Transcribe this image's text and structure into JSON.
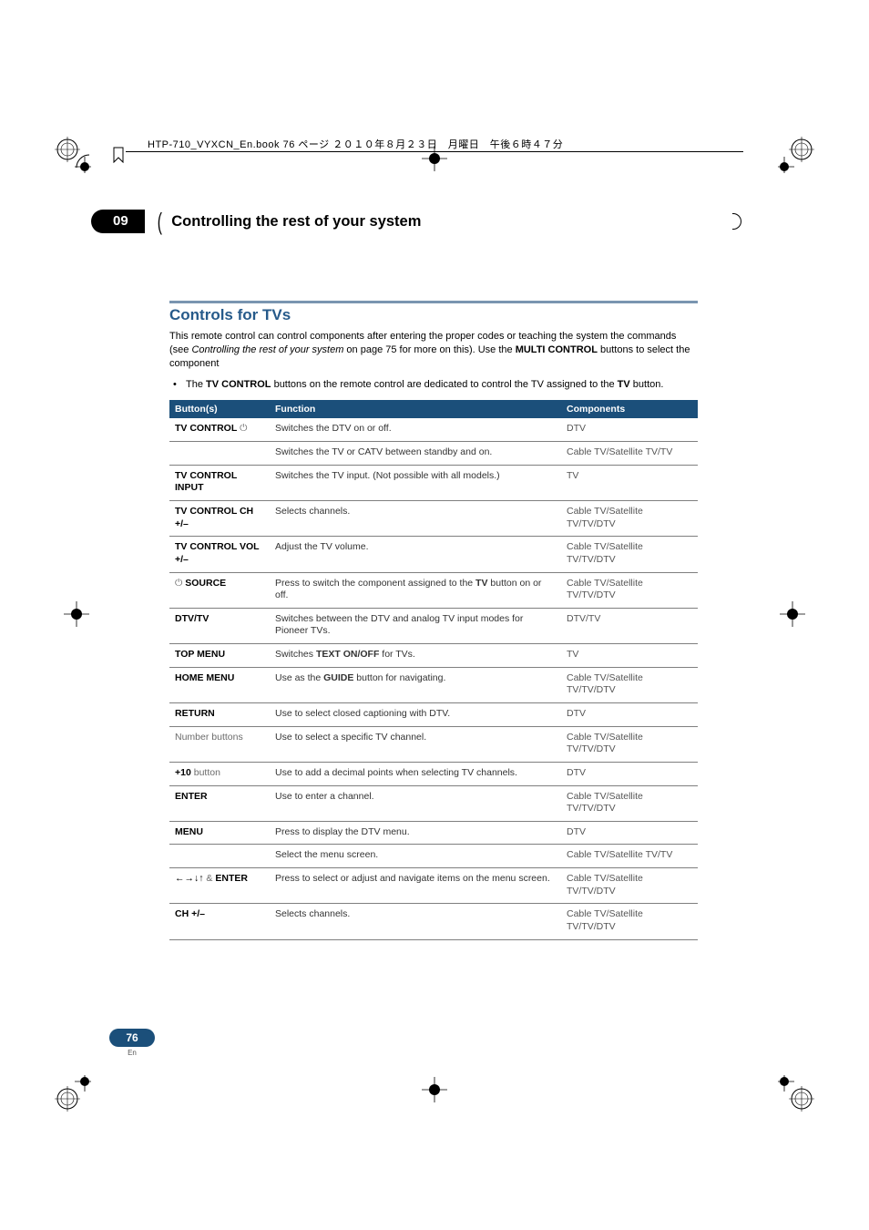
{
  "printer_header": "HTP-710_VYXCN_En.book  76 ページ  ２０１０年８月２３日　月曜日　午後６時４７分",
  "chapter": {
    "num": "09",
    "title": "Controlling the rest of your system"
  },
  "section": {
    "title": "Controls for TVs",
    "intro_a": "This remote control can control components after entering the proper codes or teaching the system the commands (see ",
    "intro_ital": "Controlling the rest of your system",
    "intro_b": " on page 75 for more on this). Use the ",
    "intro_bold": "MULTI CONTROL",
    "intro_c": " buttons to select the component",
    "bullet_a": "The ",
    "bullet_bold1": "TV CONTROL",
    "bullet_b": " buttons on the remote control are dedicated to control the TV assigned to the ",
    "bullet_bold2": "TV",
    "bullet_c": " button."
  },
  "table": {
    "head": {
      "c1": "Button(s)",
      "c2": "Function",
      "c3": "Components"
    },
    "rows": [
      {
        "btn": "TV CONTROL ⏻",
        "btn_html": "<b>TV CONTROL</b> <span class='grey'>⏻</span>",
        "fn": "Switches the DTV on or off.",
        "comp": "DTV"
      },
      {
        "btn": "",
        "fn": "Switches the TV or CATV between standby and on.",
        "comp": "Cable TV/Satellite TV/TV"
      },
      {
        "btn": "TV CONTROL INPUT",
        "fn": "Switches the TV input. (Not possible with all models.)",
        "comp": "TV"
      },
      {
        "btn": "TV CONTROL CH +/–",
        "fn": "Selects channels.",
        "comp": "Cable TV/Satellite TV/TV/DTV"
      },
      {
        "btn": "TV CONTROL VOL +/–",
        "fn": "Adjust the TV volume.",
        "comp": "Cable TV/Satellite TV/TV/DTV"
      },
      {
        "btn": "⏻ SOURCE",
        "btn_html": "<span class='grey'>⏻</span> <b>SOURCE</b>",
        "fn_html": "Press to switch the component assigned to the <b>TV</b> button on or off.",
        "comp": "Cable TV/Satellite TV/TV/DTV"
      },
      {
        "btn": "DTV/TV",
        "fn": "Switches between the DTV and analog TV input modes for Pioneer TVs.",
        "comp": "DTV/TV"
      },
      {
        "btn": "TOP MENU",
        "fn_html": "Switches <b>TEXT ON/OFF</b> for TVs.",
        "comp": "TV"
      },
      {
        "btn": "HOME MENU",
        "fn_html": "Use as the <b>GUIDE</b> button for navigating.",
        "comp": "Cable TV/Satellite TV/TV/DTV"
      },
      {
        "btn": "RETURN",
        "fn": "Use to select closed captioning with DTV.",
        "comp": "DTV"
      },
      {
        "btn_html": "<span class='grey' style='font-weight:normal'>Number buttons</span>",
        "fn": "Use to select a specific TV channel.",
        "comp": "Cable TV/Satellite TV/TV/DTV"
      },
      {
        "btn_html": "<b>+10</b> <span class='grey' style='font-weight:normal'>button</span>",
        "fn": "Use to add a decimal points when selecting TV channels.",
        "comp": "DTV"
      },
      {
        "btn": "ENTER",
        "fn": "Use to enter a channel.",
        "comp": "Cable TV/Satellite TV/TV/DTV"
      },
      {
        "btn": "MENU",
        "fn": "Press to display the DTV menu.",
        "comp": "DTV"
      },
      {
        "btn": "",
        "fn": "Select the menu screen.",
        "comp": "Cable TV/Satellite TV/TV"
      },
      {
        "btn_html": "<b>←→↓↑</b> <span class='grey' style='font-weight:normal'>&amp;</span> <b>ENTER</b>",
        "fn": "Press to select or adjust and navigate items on the menu screen.",
        "comp": "Cable TV/Satellite TV/TV/DTV"
      },
      {
        "btn": "CH +/–",
        "fn": "Selects channels.",
        "comp": "Cable TV/Satellite TV/TV/DTV"
      }
    ]
  },
  "footer": {
    "pagenum": "76",
    "lang": "En"
  },
  "colors": {
    "header_blue": "#1b4f7a",
    "rule_blue": "#7a95b0",
    "title_blue": "#265a8a",
    "grey_text": "#555555",
    "border_grey": "#7f7f7f"
  }
}
